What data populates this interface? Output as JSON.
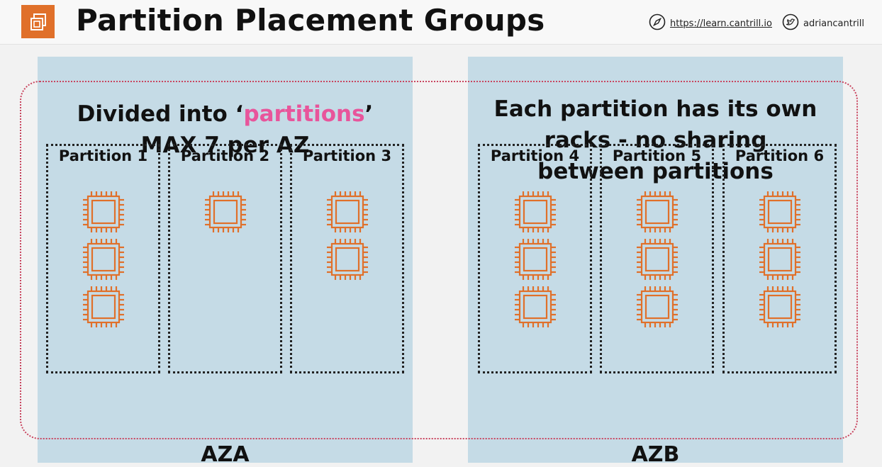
{
  "header": {
    "title": "Partition Placement Groups",
    "website": "https://learn.cantrill.io",
    "twitter": "adriancantrill"
  },
  "availability_zones": [
    {
      "label": "AZA",
      "text_lines": [
        "Divided into ‘",
        "partitions",
        "’",
        "MAX 7 per AZ"
      ],
      "partitions": [
        {
          "label": "Partition 1",
          "instances": 3
        },
        {
          "label": "Partition 2",
          "instances": 1
        },
        {
          "label": "Partition 3",
          "instances": 2
        }
      ]
    },
    {
      "label": "AZB",
      "text_lines": [
        "Each partition has its own",
        "racks - no sharing",
        "between partitions"
      ],
      "partitions": [
        {
          "label": "Partition 4",
          "instances": 3
        },
        {
          "label": "Partition 5",
          "instances": 3
        },
        {
          "label": "Partition 6",
          "instances": 3
        }
      ]
    }
  ],
  "colors": {
    "az_background": "#c5dbe6",
    "chip": "#e0702a",
    "placement_group_outline": "#c9455f",
    "highlight": "#e8559b"
  },
  "icons": {
    "logo": "ec2-instances-icon",
    "instance": "ec2-instance-chip-icon",
    "website": "compass-icon",
    "twitter": "twitter-icon"
  }
}
